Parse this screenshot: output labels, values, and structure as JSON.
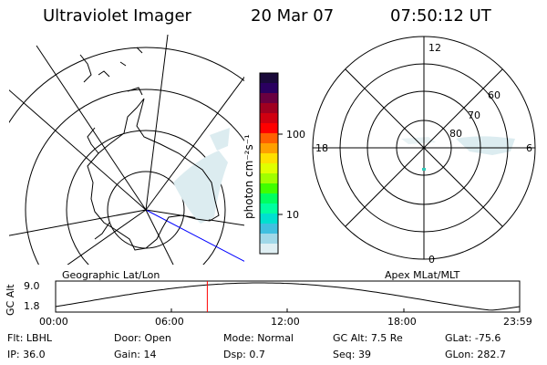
{
  "header": {
    "title": "Ultraviolet Imager",
    "date": "20 Mar 07",
    "time": "07:50:12 UT"
  },
  "colorbar": {
    "unit_label": "photon cm⁻²s⁻¹",
    "ticks": [
      "100",
      "10"
    ],
    "colors": [
      "#1a0a3a",
      "#2a0060",
      "#6a0040",
      "#a00020",
      "#d00010",
      "#ff0000",
      "#ff6000",
      "#ffa000",
      "#ffe000",
      "#e0ff00",
      "#a0ff00",
      "#40ff00",
      "#00ff60",
      "#00ffa0",
      "#00e0d0",
      "#40c0e0",
      "#a0d8e8",
      "#dfeff3"
    ]
  },
  "left_panel": {
    "caption": "Geographic Lat/Lon"
  },
  "right_panel": {
    "caption": "Apex MLat/MLT",
    "mlt_labels": {
      "top": "12",
      "bottom": "0",
      "left": "18",
      "right": "6"
    },
    "lat_labels": [
      "60",
      "70",
      "80"
    ]
  },
  "altitude_plot": {
    "ylabel": "GC Alt",
    "y_ticks": [
      "9.0",
      "1.8"
    ],
    "x_ticks": [
      "00:00",
      "06:00",
      "12:00",
      "18:00",
      "23:59"
    ],
    "marker_time_hours": 7.84
  },
  "status": {
    "row1": [
      {
        "label": "Flt:",
        "value": "LBHL"
      },
      {
        "label": "Door:",
        "value": "Open"
      },
      {
        "label": "Mode:",
        "value": "Normal"
      },
      {
        "label": "GC Alt:",
        "value": "7.5 Re"
      },
      {
        "label": "GLat:",
        "value": "-75.6"
      }
    ],
    "row2": [
      {
        "label": "IP:",
        "value": "36.0"
      },
      {
        "label": "Gain:",
        "value": "14"
      },
      {
        "label": "Dsp:",
        "value": "0.7"
      },
      {
        "label": "Seq:",
        "value": "39"
      },
      {
        "label": "GLon:",
        "value": "282.7"
      }
    ]
  }
}
